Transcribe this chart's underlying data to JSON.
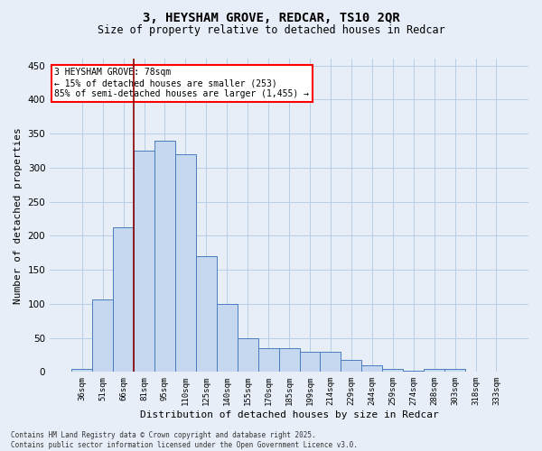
{
  "title_line1": "3, HEYSHAM GROVE, REDCAR, TS10 2QR",
  "title_line2": "Size of property relative to detached houses in Redcar",
  "xlabel": "Distribution of detached houses by size in Redcar",
  "ylabel": "Number of detached properties",
  "categories": [
    "36sqm",
    "51sqm",
    "66sqm",
    "81sqm",
    "95sqm",
    "110sqm",
    "125sqm",
    "140sqm",
    "155sqm",
    "170sqm",
    "185sqm",
    "199sqm",
    "214sqm",
    "229sqm",
    "244sqm",
    "259sqm",
    "274sqm",
    "288sqm",
    "303sqm",
    "318sqm",
    "333sqm"
  ],
  "values": [
    5,
    107,
    213,
    325,
    340,
    320,
    170,
    100,
    50,
    35,
    35,
    30,
    30,
    18,
    10,
    5,
    2,
    5,
    5,
    1,
    1
  ],
  "bar_color": "#c5d8f0",
  "bar_edge_color": "#4a7dbf",
  "vline_color": "#8b0000",
  "vline_x_idx": 2,
  "annotation_text": "3 HEYSHAM GROVE: 78sqm\n← 15% of detached houses are smaller (253)\n85% of semi-detached houses are larger (1,455) →",
  "annotation_box_facecolor": "white",
  "annotation_box_edgecolor": "red",
  "ylim": [
    0,
    460
  ],
  "yticks": [
    0,
    50,
    100,
    150,
    200,
    250,
    300,
    350,
    400,
    450
  ],
  "grid_color": "#b8cde8",
  "background_color": "#e8eef8",
  "footnote": "Contains HM Land Registry data © Crown copyright and database right 2025.\nContains public sector information licensed under the Open Government Licence v3.0."
}
